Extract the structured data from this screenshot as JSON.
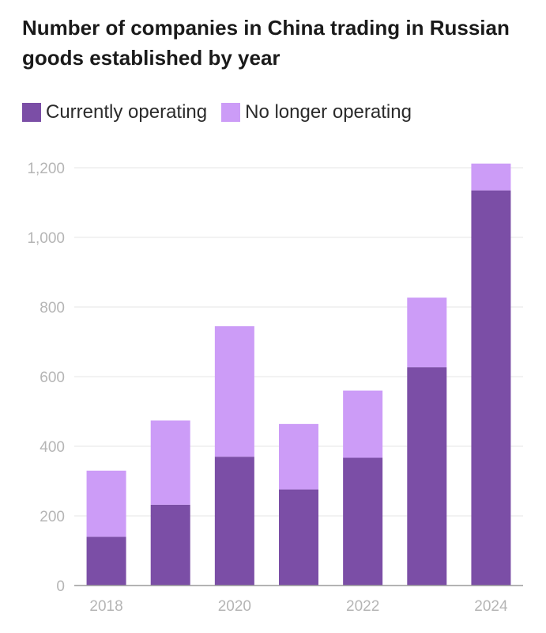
{
  "chart_data": {
    "type": "bar",
    "stacked": true,
    "title": "Number of companies in China trading in Russian goods established by year",
    "categories": [
      "2018",
      "2019",
      "2020",
      "2021",
      "2022",
      "2023",
      "2024"
    ],
    "x_tick_labels": [
      "2018",
      "",
      "2020",
      "",
      "2022",
      "",
      "2024"
    ],
    "series": [
      {
        "name": "Currently operating",
        "color": "#7b4ea6",
        "values": [
          140,
          232,
          370,
          276,
          367,
          627,
          1135
        ]
      },
      {
        "name": "No longer operating",
        "color": "#cc9cf7",
        "values": [
          190,
          242,
          375,
          188,
          193,
          200,
          77
        ]
      }
    ],
    "yticks": [
      0,
      200,
      400,
      600,
      800,
      1000,
      1200
    ],
    "ytick_labels": [
      "0",
      "200",
      "400",
      "600",
      "800",
      "1,000",
      "1,200"
    ],
    "ylim": [
      0,
      1200
    ],
    "xlabel": "",
    "ylabel": "",
    "legend_position": "top-left",
    "grid": true
  }
}
